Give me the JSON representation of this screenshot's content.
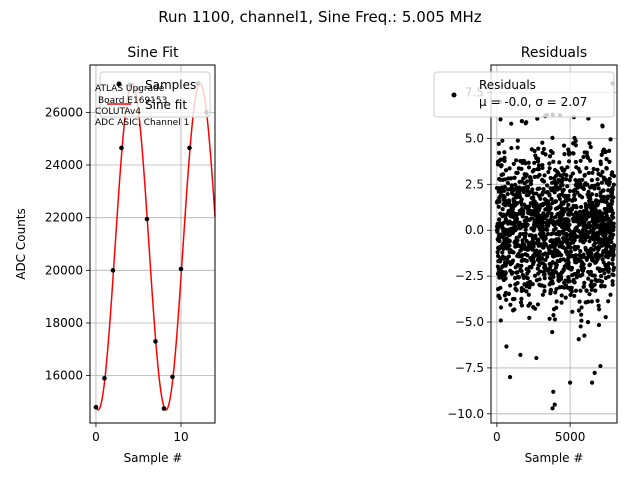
{
  "figure": {
    "suptitle": "Run 1100, channel1, Sine Freq.: 5.005 MHz"
  },
  "chart_data": [
    {
      "type": "scatter",
      "title": "Sine Fit",
      "xlabel": "Sample #",
      "ylabel": "ADC Counts",
      "xlim": [
        -0.7,
        14.0
      ],
      "ylim": [
        14200,
        27800
      ],
      "xticks": [
        0,
        10
      ],
      "yticks": [
        16000,
        18000,
        20000,
        22000,
        24000,
        26000
      ],
      "grid": true,
      "legend_position": "top-right",
      "annotation": [
        "ATLAS Upgrade",
        "Board E169153",
        "COLUTAv4",
        "ADC ASIC, Channel 1"
      ],
      "series": [
        {
          "name": "Samples",
          "kind": "points",
          "color": "#000000",
          "x": [
            0,
            1,
            2,
            3,
            4,
            5,
            6,
            7,
            8,
            9,
            10,
            11,
            12,
            13
          ],
          "y": [
            14800,
            15900,
            20000,
            24650,
            27050,
            26900,
            21950,
            17300,
            14750,
            15950,
            20050,
            24650,
            27100,
            26000
          ]
        },
        {
          "name": "Sine fit",
          "kind": "line",
          "color": "#ff0000",
          "model": {
            "offset": 20900,
            "amplitude": 6200,
            "period_samples": 7.99,
            "phase_rad": -1.77,
            "x_range": [
              0,
              14
            ]
          }
        }
      ]
    },
    {
      "type": "scatter",
      "title": "Residuals",
      "xlabel": "Sample #",
      "ylabel": "",
      "xlim": [
        -400,
        8200
      ],
      "ylim": [
        -10.5,
        9.0
      ],
      "xticks": [
        0,
        5000
      ],
      "yticks": [
        -10.0,
        -7.5,
        -5.0,
        -2.5,
        0.0,
        2.5,
        5.0,
        7.5
      ],
      "ytick_labels": [
        "−10.0",
        "−7.5",
        "−5.0",
        "−2.5",
        "0.0",
        "2.5",
        "5.0",
        "7.5"
      ],
      "grid": true,
      "legend_position": "top-right",
      "series": [
        {
          "name": "Residuals",
          "legend_line2": "μ = -0.0, σ = 2.07",
          "kind": "points",
          "color": "#000000",
          "n_points": 8000,
          "x_range": [
            0,
            7999
          ],
          "mean": -0.0,
          "std": 2.07,
          "notable_points": [
            {
              "x": 3800,
              "y": -9.7
            },
            {
              "x": 3950,
              "y": -9.5
            },
            {
              "x": 3850,
              "y": -8.8
            },
            {
              "x": 6500,
              "y": -8.3
            },
            {
              "x": 5000,
              "y": -8.3
            },
            {
              "x": 900,
              "y": -8.0
            },
            {
              "x": 7900,
              "y": 8.0
            },
            {
              "x": 200,
              "y": 7.0
            },
            {
              "x": 7200,
              "y": 5.7
            }
          ]
        }
      ]
    }
  ]
}
